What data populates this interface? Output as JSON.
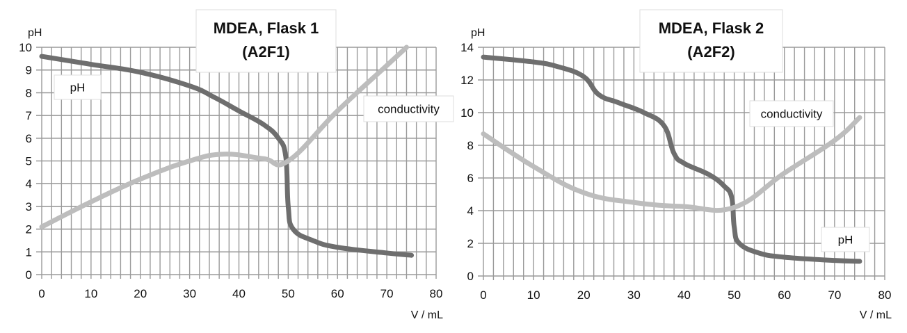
{
  "chart_data": [
    {
      "type": "line",
      "title": "MDEA, Flask 1",
      "subtitle": "(A2F1)",
      "xlabel": "V / mL",
      "ylabel": "pH",
      "xlim": [
        0,
        80
      ],
      "ylim": [
        0,
        10
      ],
      "xticks": [
        0,
        10,
        20,
        30,
        40,
        50,
        60,
        70,
        80
      ],
      "yticks": [
        0,
        1,
        2,
        3,
        4,
        5,
        6,
        7,
        8,
        9,
        10
      ],
      "grid": true,
      "annotations": [
        "pH",
        "conductivity"
      ],
      "series": [
        {
          "name": "pH",
          "color": "#6e6e6e",
          "x": [
            0,
            10,
            20,
            30,
            35,
            40,
            45,
            48,
            49.5,
            50,
            51,
            55,
            60,
            70,
            75
          ],
          "y": [
            9.6,
            9.25,
            8.9,
            8.3,
            7.8,
            7.2,
            6.6,
            6.0,
            5.2,
            3.0,
            2.0,
            1.5,
            1.2,
            0.95,
            0.85
          ]
        },
        {
          "name": "conductivity",
          "color": "#bdbdbd",
          "x": [
            0,
            10,
            20,
            30,
            37,
            45,
            50,
            60,
            70,
            74
          ],
          "y": [
            2.1,
            3.2,
            4.2,
            5.0,
            5.3,
            5.1,
            5.0,
            7.2,
            9.2,
            10.0
          ]
        }
      ]
    },
    {
      "type": "line",
      "title": "MDEA, Flask 2",
      "subtitle": "(A2F2)",
      "xlabel": "V / mL",
      "ylabel": "pH",
      "xlim": [
        0,
        80
      ],
      "ylim": [
        0,
        14
      ],
      "xticks": [
        0,
        10,
        20,
        30,
        40,
        50,
        60,
        70,
        80
      ],
      "yticks": [
        0,
        2,
        4,
        6,
        8,
        10,
        12,
        14
      ],
      "grid": true,
      "annotations": [
        "conductivity",
        "pH"
      ],
      "series": [
        {
          "name": "pH",
          "color": "#6e6e6e",
          "x": [
            0,
            10,
            15,
            20,
            23,
            27,
            32,
            36,
            38,
            40,
            45,
            48,
            49.5,
            50,
            51,
            55,
            60,
            70,
            75
          ],
          "y": [
            13.4,
            13.1,
            12.8,
            12.2,
            11.1,
            10.6,
            10.0,
            9.2,
            7.5,
            6.9,
            6.2,
            5.5,
            4.8,
            3.0,
            2.0,
            1.4,
            1.15,
            0.95,
            0.9
          ]
        },
        {
          "name": "conductivity",
          "color": "#bdbdbd",
          "x": [
            0,
            10,
            20,
            30,
            40,
            50,
            60,
            70,
            75
          ],
          "y": [
            8.7,
            6.7,
            5.1,
            4.5,
            4.25,
            4.2,
            6.3,
            8.3,
            9.7
          ]
        }
      ]
    }
  ]
}
